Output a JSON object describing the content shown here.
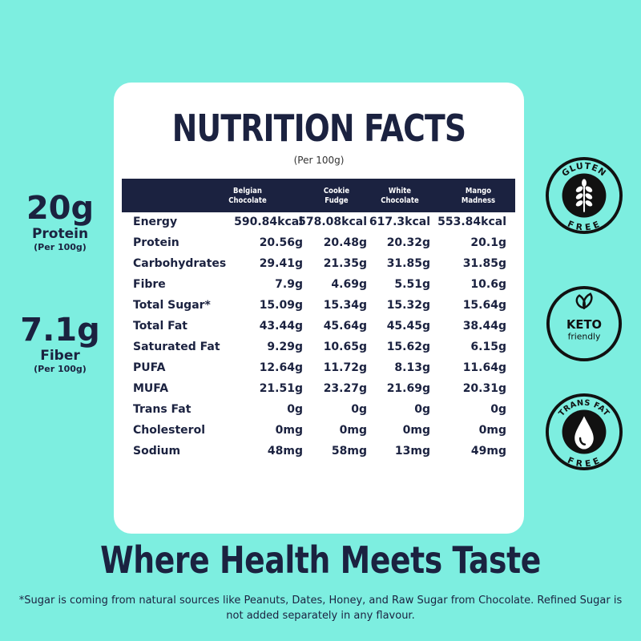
{
  "card": {
    "title": "NUTRITION FACTS",
    "subtitle": "(Per 100g)",
    "columns": [
      {
        "line1": "Belgian",
        "line2": "Chocolate"
      },
      {
        "line1": "Cookie",
        "line2": "Fudge"
      },
      {
        "line1": "White",
        "line2": "Chocolate"
      },
      {
        "line1": "Mango",
        "line2": "Madness"
      }
    ],
    "rows": [
      {
        "label": "Energy",
        "values": [
          "590.84kcal",
          "578.08kcal",
          "617.3kcal",
          "553.84kcal"
        ]
      },
      {
        "label": "Protein",
        "values": [
          "20.56g",
          "20.48g",
          "20.32g",
          "20.1g"
        ]
      },
      {
        "label": "Carbohydrates",
        "values": [
          "29.41g",
          "21.35g",
          "31.85g",
          "31.85g"
        ]
      },
      {
        "label": "Fibre",
        "values": [
          "7.9g",
          "4.69g",
          "5.51g",
          "10.6g"
        ]
      },
      {
        "label": "Total Sugar*",
        "values": [
          "15.09g",
          "15.34g",
          "15.32g",
          "15.64g"
        ]
      },
      {
        "label": "Total Fat",
        "values": [
          "43.44g",
          "45.64g",
          "45.45g",
          "38.44g"
        ]
      },
      {
        "label": "Saturated Fat",
        "values": [
          "9.29g",
          "10.65g",
          "15.62g",
          "6.15g"
        ]
      },
      {
        "label": "PUFA",
        "values": [
          "12.64g",
          "11.72g",
          "8.13g",
          "11.64g"
        ]
      },
      {
        "label": "MUFA",
        "values": [
          "21.51g",
          "23.27g",
          "21.69g",
          "20.31g"
        ]
      },
      {
        "label": "Trans Fat",
        "values": [
          "0g",
          "0g",
          "0g",
          "0g"
        ]
      },
      {
        "label": "Cholesterol",
        "values": [
          "0mg",
          "0mg",
          "0mg",
          "0mg"
        ]
      },
      {
        "label": "Sodium",
        "values": [
          "48mg",
          "58mg",
          "13mg",
          "49mg"
        ]
      }
    ]
  },
  "stats": [
    {
      "value": "20g",
      "label": "Protein",
      "per": "(Per 100g)"
    },
    {
      "value": "7.1g",
      "label": "Fiber",
      "per": "(Per 100g)"
    }
  ],
  "badges": {
    "gluten": {
      "top": "GLUTEN",
      "bottom": "FREE",
      "icon": "wheat-icon"
    },
    "keto": {
      "line1": "KETO",
      "line2": "friendly",
      "icon": "leaf-icon"
    },
    "transfat": {
      "top": "TRANS FAT",
      "bottom": "FREE",
      "icon": "droplet-icon"
    }
  },
  "tagline": "Where Health Meets Taste",
  "footnote": "*Sugar is coming from natural sources like Peanuts, Dates, Honey, and Raw Sugar from Chocolate. Refined Sugar is not added separately in any flavour.",
  "colors": {
    "background": "#7deee0",
    "navy": "#1b2240",
    "card": "#ffffff"
  }
}
